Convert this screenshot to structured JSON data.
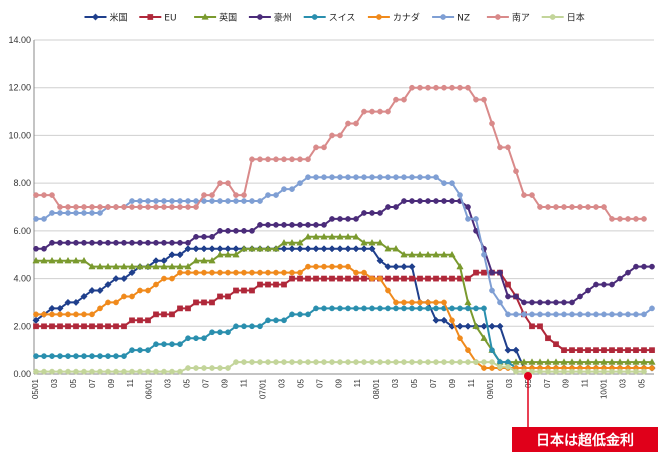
{
  "chart_data": {
    "type": "line",
    "title": "",
    "xlabel": "",
    "ylabel": "",
    "ylim": [
      0,
      14
    ],
    "yticks": [
      "0.00",
      "2.00",
      "4.00",
      "6.00",
      "8.00",
      "10.00",
      "12.00",
      "14.00"
    ],
    "grid": true,
    "legend_position": "top",
    "x_tick_labels": [
      "05/01",
      "03",
      "05",
      "07",
      "09",
      "11",
      "06/01",
      "03",
      "05",
      "07",
      "09",
      "11",
      "07/01",
      "03",
      "05",
      "07",
      "09",
      "11",
      "08/01",
      "03",
      "05",
      "07",
      "09",
      "11",
      "09/01",
      "03",
      "05",
      "07",
      "09",
      "11",
      "10/01",
      "03",
      "05"
    ],
    "series": [
      {
        "name": "米国",
        "color": "#1f3f8c",
        "marker": "diamond",
        "values": [
          2.25,
          2.5,
          2.75,
          2.75,
          3,
          3,
          3.25,
          3.5,
          3.5,
          3.75,
          4,
          4,
          4.25,
          4.5,
          4.5,
          4.75,
          4.75,
          5,
          5,
          5.25,
          5.25,
          5.25,
          5.25,
          5.25,
          5.25,
          5.25,
          5.25,
          5.25,
          5.25,
          5.25,
          5.25,
          5.25,
          5.25,
          5.25,
          5.25,
          5.25,
          5.25,
          5.25,
          5.25,
          5.25,
          5.25,
          5.25,
          5.25,
          4.75,
          4.5,
          4.5,
          4.5,
          4.5,
          3,
          3,
          2.25,
          2.25,
          2,
          2,
          2,
          2,
          2,
          2,
          2,
          1,
          1,
          0.25,
          0.25,
          0.25,
          0.25,
          0.25,
          0.25,
          0.25,
          0.25,
          0.25,
          0.25,
          0.25,
          0.25,
          0.25,
          0.25,
          0.25,
          0.25,
          0.25
        ]
      },
      {
        "name": "EU",
        "color": "#b0283a",
        "marker": "square",
        "values": [
          2,
          2,
          2,
          2,
          2,
          2,
          2,
          2,
          2,
          2,
          2,
          2,
          2.25,
          2.25,
          2.25,
          2.5,
          2.5,
          2.5,
          2.75,
          2.75,
          3,
          3,
          3,
          3.25,
          3.25,
          3.5,
          3.5,
          3.5,
          3.75,
          3.75,
          3.75,
          3.75,
          4,
          4,
          4,
          4,
          4,
          4,
          4,
          4,
          4,
          4,
          4,
          4,
          4,
          4,
          4,
          4,
          4,
          4,
          4,
          4,
          4,
          4,
          4,
          4.25,
          4.25,
          4.25,
          4.25,
          3.75,
          3.25,
          2.5,
          2,
          2,
          1.5,
          1.25,
          1,
          1,
          1,
          1,
          1,
          1,
          1,
          1,
          1,
          1,
          1,
          1
        ]
      },
      {
        "name": "英国",
        "color": "#7a9a2e",
        "marker": "triangle",
        "values": [
          4.75,
          4.75,
          4.75,
          4.75,
          4.75,
          4.75,
          4.75,
          4.5,
          4.5,
          4.5,
          4.5,
          4.5,
          4.5,
          4.5,
          4.5,
          4.5,
          4.5,
          4.5,
          4.5,
          4.5,
          4.75,
          4.75,
          4.75,
          5,
          5,
          5,
          5.25,
          5.25,
          5.25,
          5.25,
          5.25,
          5.5,
          5.5,
          5.5,
          5.75,
          5.75,
          5.75,
          5.75,
          5.75,
          5.75,
          5.75,
          5.5,
          5.5,
          5.5,
          5.25,
          5.25,
          5,
          5,
          5,
          5,
          5,
          5,
          5,
          4.5,
          3,
          2,
          1.5,
          1,
          0.5,
          0.5,
          0.5,
          0.5,
          0.5,
          0.5,
          0.5,
          0.5,
          0.5,
          0.5,
          0.5,
          0.5,
          0.5,
          0.5,
          0.5,
          0.5,
          0.5,
          0.5,
          0.5,
          0.5
        ]
      },
      {
        "name": "豪州",
        "color": "#4b2c7a",
        "marker": "circle",
        "values": [
          5.25,
          5.25,
          5.5,
          5.5,
          5.5,
          5.5,
          5.5,
          5.5,
          5.5,
          5.5,
          5.5,
          5.5,
          5.5,
          5.5,
          5.5,
          5.5,
          5.5,
          5.5,
          5.5,
          5.5,
          5.75,
          5.75,
          5.75,
          6,
          6,
          6,
          6,
          6,
          6.25,
          6.25,
          6.25,
          6.25,
          6.25,
          6.25,
          6.25,
          6.25,
          6.25,
          6.5,
          6.5,
          6.5,
          6.5,
          6.75,
          6.75,
          6.75,
          7,
          7,
          7.25,
          7.25,
          7.25,
          7.25,
          7.25,
          7.25,
          7.25,
          7.25,
          7,
          6,
          5.25,
          4.25,
          4.25,
          3.25,
          3.25,
          3,
          3,
          3,
          3,
          3,
          3,
          3,
          3.25,
          3.5,
          3.75,
          3.75,
          3.75,
          4,
          4.25,
          4.5,
          4.5,
          4.5
        ]
      },
      {
        "name": "スイス",
        "color": "#2a8fae",
        "marker": "circle",
        "values": [
          0.75,
          0.75,
          0.75,
          0.75,
          0.75,
          0.75,
          0.75,
          0.75,
          0.75,
          0.75,
          0.75,
          0.75,
          1,
          1,
          1,
          1.25,
          1.25,
          1.25,
          1.25,
          1.5,
          1.5,
          1.5,
          1.75,
          1.75,
          1.75,
          2,
          2,
          2,
          2,
          2.25,
          2.25,
          2.25,
          2.5,
          2.5,
          2.5,
          2.75,
          2.75,
          2.75,
          2.75,
          2.75,
          2.75,
          2.75,
          2.75,
          2.75,
          2.75,
          2.75,
          2.75,
          2.75,
          2.75,
          2.75,
          2.75,
          2.75,
          2.75,
          2.75,
          2.75,
          2.75,
          2.75,
          1,
          0.5,
          0.5,
          0.25,
          0.25,
          0.25,
          0.25,
          0.25,
          0.25,
          0.25,
          0.25,
          0.25,
          0.25,
          0.25,
          0.25,
          0.25,
          0.25,
          0.25,
          0.25,
          0.25,
          0.25
        ]
      },
      {
        "name": "カナダ",
        "color": "#f08a1c",
        "marker": "circle",
        "values": [
          2.5,
          2.5,
          2.5,
          2.5,
          2.5,
          2.5,
          2.5,
          2.5,
          2.75,
          3,
          3,
          3.25,
          3.25,
          3.5,
          3.5,
          3.75,
          4,
          4,
          4.25,
          4.25,
          4.25,
          4.25,
          4.25,
          4.25,
          4.25,
          4.25,
          4.25,
          4.25,
          4.25,
          4.25,
          4.25,
          4.25,
          4.25,
          4.25,
          4.5,
          4.5,
          4.5,
          4.5,
          4.5,
          4.5,
          4.25,
          4.25,
          4,
          4,
          3.5,
          3,
          3,
          3,
          3,
          3,
          3,
          3,
          2.25,
          1.5,
          1,
          0.5,
          0.25,
          0.25,
          0.25,
          0.25,
          0.25,
          0.25,
          0.25,
          0.25,
          0.25,
          0.25,
          0.25,
          0.25,
          0.25,
          0.25,
          0.25,
          0.25,
          0.25,
          0.25,
          0.25,
          0.25,
          0.25,
          0.25
        ]
      },
      {
        "name": "NZ",
        "color": "#7f9fd4",
        "marker": "circle",
        "values": [
          6.5,
          6.5,
          6.75,
          6.75,
          6.75,
          6.75,
          6.75,
          6.75,
          6.75,
          7,
          7,
          7,
          7.25,
          7.25,
          7.25,
          7.25,
          7.25,
          7.25,
          7.25,
          7.25,
          7.25,
          7.25,
          7.25,
          7.25,
          7.25,
          7.25,
          7.25,
          7.25,
          7.25,
          7.5,
          7.5,
          7.75,
          7.75,
          8,
          8.25,
          8.25,
          8.25,
          8.25,
          8.25,
          8.25,
          8.25,
          8.25,
          8.25,
          8.25,
          8.25,
          8.25,
          8.25,
          8.25,
          8.25,
          8.25,
          8.25,
          8,
          8,
          7.5,
          6.5,
          6.5,
          5,
          3.5,
          3,
          2.5,
          2.5,
          2.5,
          2.5,
          2.5,
          2.5,
          2.5,
          2.5,
          2.5,
          2.5,
          2.5,
          2.5,
          2.5,
          2.5,
          2.5,
          2.5,
          2.5,
          2.5,
          2.75
        ]
      },
      {
        "name": "南ア",
        "color": "#d98a8a",
        "marker": "circle",
        "values": [
          7.5,
          7.5,
          7.5,
          7,
          7,
          7,
          7,
          7,
          7,
          7,
          7,
          7,
          7,
          7,
          7,
          7,
          7,
          7,
          7,
          7,
          7,
          7.5,
          7.5,
          8,
          8,
          7.5,
          7.5,
          9,
          9,
          9,
          9,
          9,
          9,
          9,
          9,
          9.5,
          9.5,
          10,
          10,
          10.5,
          10.5,
          11,
          11,
          11,
          11,
          11.5,
          11.5,
          12,
          12,
          12,
          12,
          12,
          12,
          12,
          12,
          11.5,
          11.5,
          10.5,
          9.5,
          9.5,
          8.5,
          7.5,
          7.5,
          7,
          7,
          7,
          7,
          7,
          7,
          7,
          7,
          7,
          6.5,
          6.5,
          6.5,
          6.5,
          6.5
        ]
      },
      {
        "name": "日本",
        "color": "#c3d59a",
        "marker": "circle",
        "values": [
          0.1,
          0.1,
          0.1,
          0.1,
          0.1,
          0.1,
          0.1,
          0.1,
          0.1,
          0.1,
          0.1,
          0.1,
          0.1,
          0.1,
          0.1,
          0.1,
          0.1,
          0.1,
          0.1,
          0.25,
          0.25,
          0.25,
          0.25,
          0.25,
          0.25,
          0.5,
          0.5,
          0.5,
          0.5,
          0.5,
          0.5,
          0.5,
          0.5,
          0.5,
          0.5,
          0.5,
          0.5,
          0.5,
          0.5,
          0.5,
          0.5,
          0.5,
          0.5,
          0.5,
          0.5,
          0.5,
          0.5,
          0.5,
          0.5,
          0.5,
          0.5,
          0.5,
          0.5,
          0.5,
          0.5,
          0.5,
          0.5,
          0.5,
          0.3,
          0.3,
          0.1,
          0.1,
          0.1,
          0.1,
          0.1,
          0.1,
          0.1,
          0.1,
          0.1,
          0.1,
          0.1,
          0.1,
          0.1,
          0.1,
          0.1,
          0.1,
          0.1
        ]
      }
    ],
    "annotation": {
      "text": "日本は超低金利",
      "color": "#e0001a"
    }
  }
}
